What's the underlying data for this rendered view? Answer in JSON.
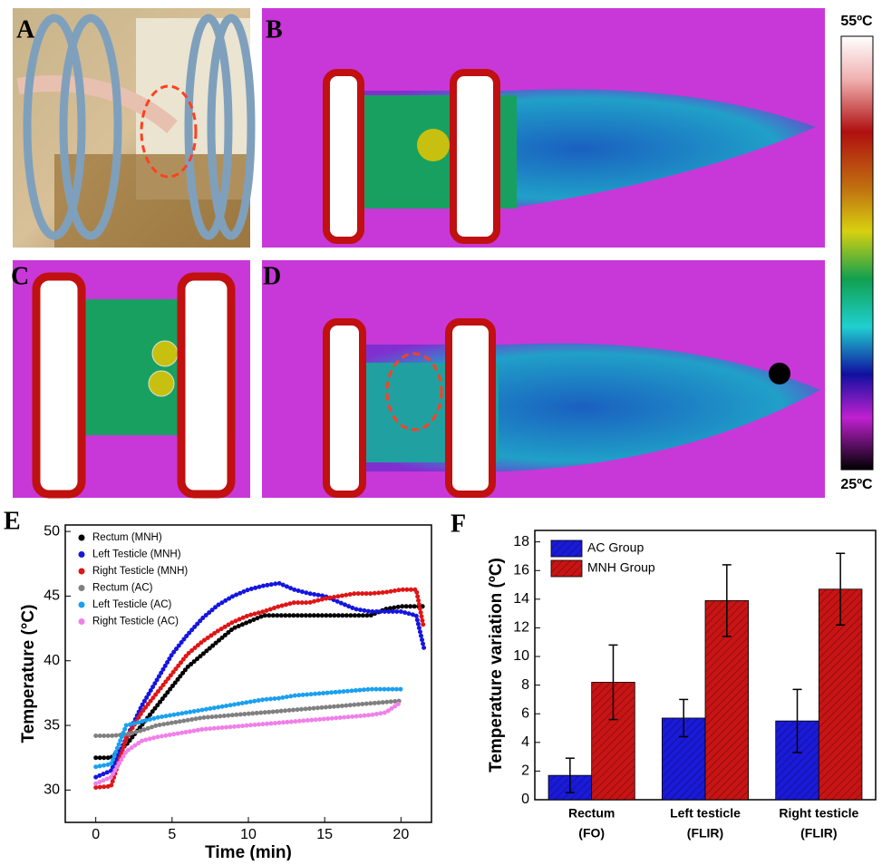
{
  "panels": [
    "A",
    "B",
    "C",
    "D",
    "E",
    "F"
  ],
  "colorbar": {
    "max_label": "55ºC",
    "min_label": "25ºC"
  },
  "chart_data": [
    {
      "type": "line",
      "xlabel": "Time (min)",
      "ylabel": "Temperature (°C)",
      "x": [
        0,
        1,
        2,
        3,
        4,
        5,
        6,
        7,
        8,
        9,
        10,
        11,
        12,
        13,
        14,
        15,
        16,
        17,
        18,
        19,
        20,
        21,
        21.5
      ],
      "series": [
        {
          "name": "Rectum (MNH)",
          "color": "#000000",
          "values": [
            32.5,
            32.5,
            33.5,
            35,
            36.5,
            38,
            39.5,
            40.5,
            41.5,
            42.5,
            43,
            43.5,
            43.5,
            43.5,
            43.5,
            43.5,
            43.5,
            43.5,
            43.5,
            44,
            44.2,
            44.2,
            44.2
          ]
        },
        {
          "name": "Left Testicle (MNH)",
          "color": "#1515e0",
          "values": [
            31,
            31.5,
            34,
            36.5,
            38.5,
            40.5,
            42,
            43.3,
            44.3,
            45,
            45.5,
            45.8,
            46,
            45.5,
            45.2,
            45,
            44.5,
            44,
            43.8,
            43.8,
            43.8,
            43.5,
            41
          ]
        },
        {
          "name": "Right Testicle (MNH)",
          "color": "#e01515",
          "values": [
            30.2,
            30.3,
            34,
            36,
            37.5,
            39,
            40.5,
            41.5,
            42.3,
            43,
            43.5,
            43.8,
            44.2,
            44.5,
            44.5,
            44.8,
            45,
            45.2,
            45.2,
            45.3,
            45.5,
            45.5,
            42.5
          ]
        },
        {
          "name": "Rectum (AC)",
          "color": "#808080",
          "values": [
            34.2,
            34.2,
            34.3,
            34.6,
            35,
            35.2,
            35.4,
            35.6,
            35.7,
            35.8,
            35.9,
            36,
            36.1,
            36.2,
            36.3,
            36.4,
            36.5,
            36.6,
            36.7,
            36.8,
            36.9,
            null,
            null
          ]
        },
        {
          "name": "Left Testicle (AC)",
          "color": "#1aa0f0",
          "values": [
            31.8,
            32,
            35,
            35.3,
            35.6,
            35.8,
            36,
            36.2,
            36.4,
            36.6,
            36.8,
            37,
            37.1,
            37.3,
            37.4,
            37.5,
            37.6,
            37.7,
            37.8,
            37.8,
            37.8,
            null,
            null
          ]
        },
        {
          "name": "Right Testicle (AC)",
          "color": "#f080e8",
          "values": [
            30.5,
            31,
            33,
            33.8,
            34.1,
            34.3,
            34.5,
            34.7,
            34.8,
            34.9,
            35,
            35.1,
            35.2,
            35.3,
            35.4,
            35.5,
            35.6,
            35.7,
            35.8,
            36,
            36.8,
            null,
            null
          ]
        }
      ],
      "xlim": [
        -2,
        22
      ],
      "xticks": [
        0,
        5,
        10,
        15,
        20
      ],
      "ylim": [
        27.5,
        50.5
      ],
      "yticks": [
        30,
        35,
        40,
        45,
        50
      ]
    },
    {
      "type": "bar",
      "ylabel": "Temperature variation (ºC)",
      "categories": [
        [
          "Rectum",
          "(FO)"
        ],
        [
          "Left testicle",
          "(FLIR)"
        ],
        [
          "Right testicle",
          "(FLIR)"
        ]
      ],
      "series": [
        {
          "name": "AC Group",
          "color": "#1a1ad8",
          "values": [
            1.7,
            5.7,
            5.5
          ],
          "errors": [
            1.2,
            1.3,
            2.2
          ]
        },
        {
          "name": "MNH Group",
          "color": "#c81414",
          "values": [
            8.2,
            13.9,
            14.7
          ],
          "errors": [
            2.6,
            2.5,
            2.5
          ]
        }
      ],
      "ylim": [
        0,
        18.8
      ],
      "yticks": [
        0,
        2,
        4,
        6,
        8,
        10,
        12,
        14,
        16,
        18
      ]
    }
  ]
}
